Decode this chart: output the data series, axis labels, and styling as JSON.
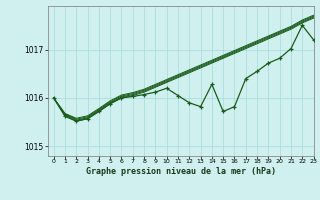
{
  "xlabel": "Graphe pression niveau de la mer (hPa)",
  "background_color": "#d0f0f0",
  "grid_color": "#aadddd",
  "line_color": "#1a5c1a",
  "ylim": [
    1014.8,
    1017.9
  ],
  "xlim": [
    -0.5,
    23
  ],
  "yticks": [
    1015,
    1016,
    1017
  ],
  "xticks": [
    0,
    1,
    2,
    3,
    4,
    5,
    6,
    7,
    8,
    9,
    10,
    11,
    12,
    13,
    14,
    15,
    16,
    17,
    18,
    19,
    20,
    21,
    22,
    23
  ],
  "main_series": [
    1016.0,
    1015.62,
    1015.52,
    1015.57,
    1015.72,
    1015.88,
    1016.0,
    1016.03,
    1016.07,
    1016.12,
    1016.2,
    1016.05,
    1015.9,
    1015.82,
    1016.28,
    1015.72,
    1015.82,
    1016.4,
    1016.55,
    1016.72,
    1016.82,
    1017.02,
    1017.5,
    1017.2
  ],
  "smooth_line1": [
    1016.0,
    1015.65,
    1015.52,
    1015.57,
    1015.72,
    1015.88,
    1016.0,
    1016.05,
    1016.12,
    1016.22,
    1016.32,
    1016.42,
    1016.52,
    1016.62,
    1016.72,
    1016.82,
    1016.92,
    1017.02,
    1017.12,
    1017.22,
    1017.32,
    1017.42,
    1017.55,
    1017.65
  ],
  "smooth_line2": [
    1016.0,
    1015.66,
    1015.54,
    1015.59,
    1015.74,
    1015.9,
    1016.02,
    1016.07,
    1016.14,
    1016.24,
    1016.34,
    1016.44,
    1016.54,
    1016.64,
    1016.74,
    1016.84,
    1016.94,
    1017.04,
    1017.14,
    1017.24,
    1017.34,
    1017.44,
    1017.57,
    1017.67
  ],
  "smooth_line3": [
    1016.0,
    1015.67,
    1015.56,
    1015.61,
    1015.76,
    1015.92,
    1016.04,
    1016.09,
    1016.16,
    1016.26,
    1016.36,
    1016.46,
    1016.56,
    1016.66,
    1016.76,
    1016.86,
    1016.96,
    1017.06,
    1017.16,
    1017.26,
    1017.36,
    1017.46,
    1017.59,
    1017.69
  ],
  "smooth_line4": [
    1016.0,
    1015.68,
    1015.58,
    1015.63,
    1015.78,
    1015.94,
    1016.06,
    1016.11,
    1016.18,
    1016.28,
    1016.38,
    1016.48,
    1016.58,
    1016.68,
    1016.78,
    1016.88,
    1016.98,
    1017.08,
    1017.18,
    1017.28,
    1017.38,
    1017.48,
    1017.61,
    1017.71
  ]
}
